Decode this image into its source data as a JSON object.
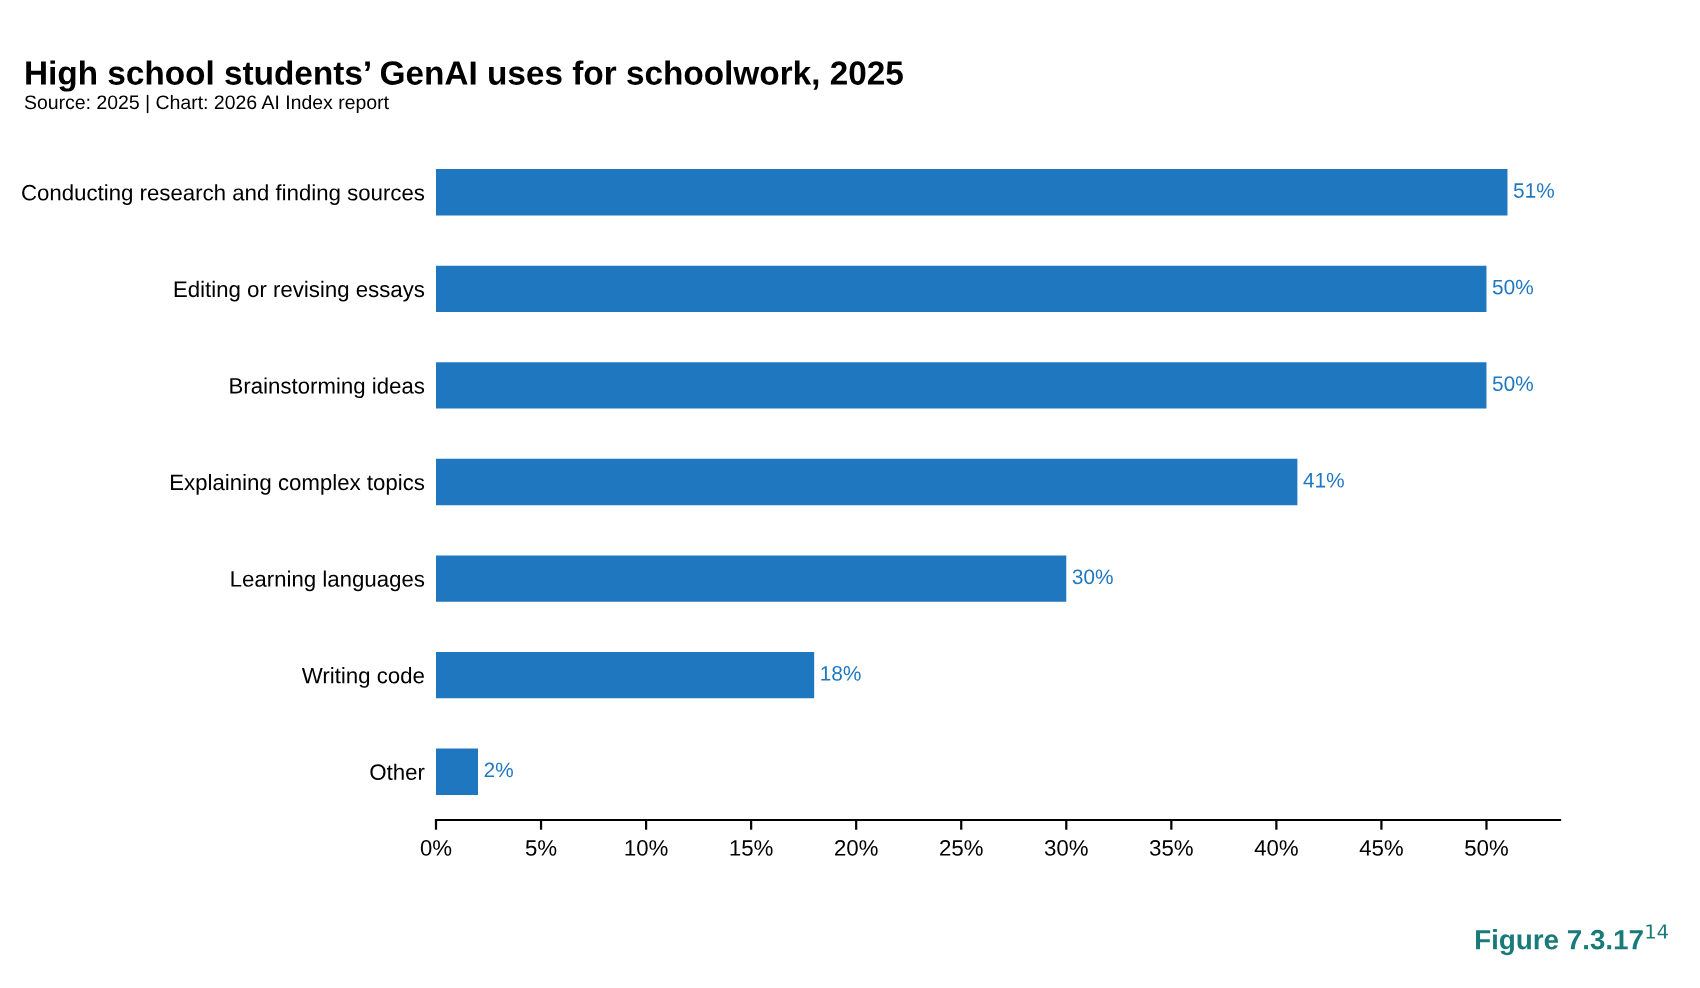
{
  "chart_data": {
    "type": "bar",
    "orientation": "horizontal",
    "title": "High school students’ GenAI uses for schoolwork, 2025",
    "subtitle": "Source: 2025 | Chart: 2026 AI Index report",
    "categories": [
      "Conducting research and finding sources",
      "Editing or revising essays",
      "Brainstorming ideas",
      "Explaining complex topics",
      "Learning languages",
      "Writing code",
      "Other"
    ],
    "values": [
      51,
      50,
      50,
      41,
      30,
      18,
      2
    ],
    "value_labels": [
      "51%",
      "50%",
      "50%",
      "41%",
      "30%",
      "18%",
      "2%"
    ],
    "color": "#1f77c0",
    "xlim": [
      0,
      53.5
    ],
    "xticks": [
      {
        "value": 0,
        "label": "0%"
      },
      {
        "value": 5,
        "label": "5%"
      },
      {
        "value": 10,
        "label": "10%"
      },
      {
        "value": 15,
        "label": "15%"
      },
      {
        "value": 20,
        "label": "20%"
      },
      {
        "value": 25,
        "label": "25%"
      },
      {
        "value": 30,
        "label": "30%"
      },
      {
        "value": 35,
        "label": "35%"
      },
      {
        "value": 40,
        "label": "40%"
      },
      {
        "value": 45,
        "label": "45%"
      },
      {
        "value": 50,
        "label": "50%"
      }
    ],
    "grid": false,
    "legend": false,
    "annotations": [
      "Figure 7.3.17$^{14}$"
    ]
  }
}
